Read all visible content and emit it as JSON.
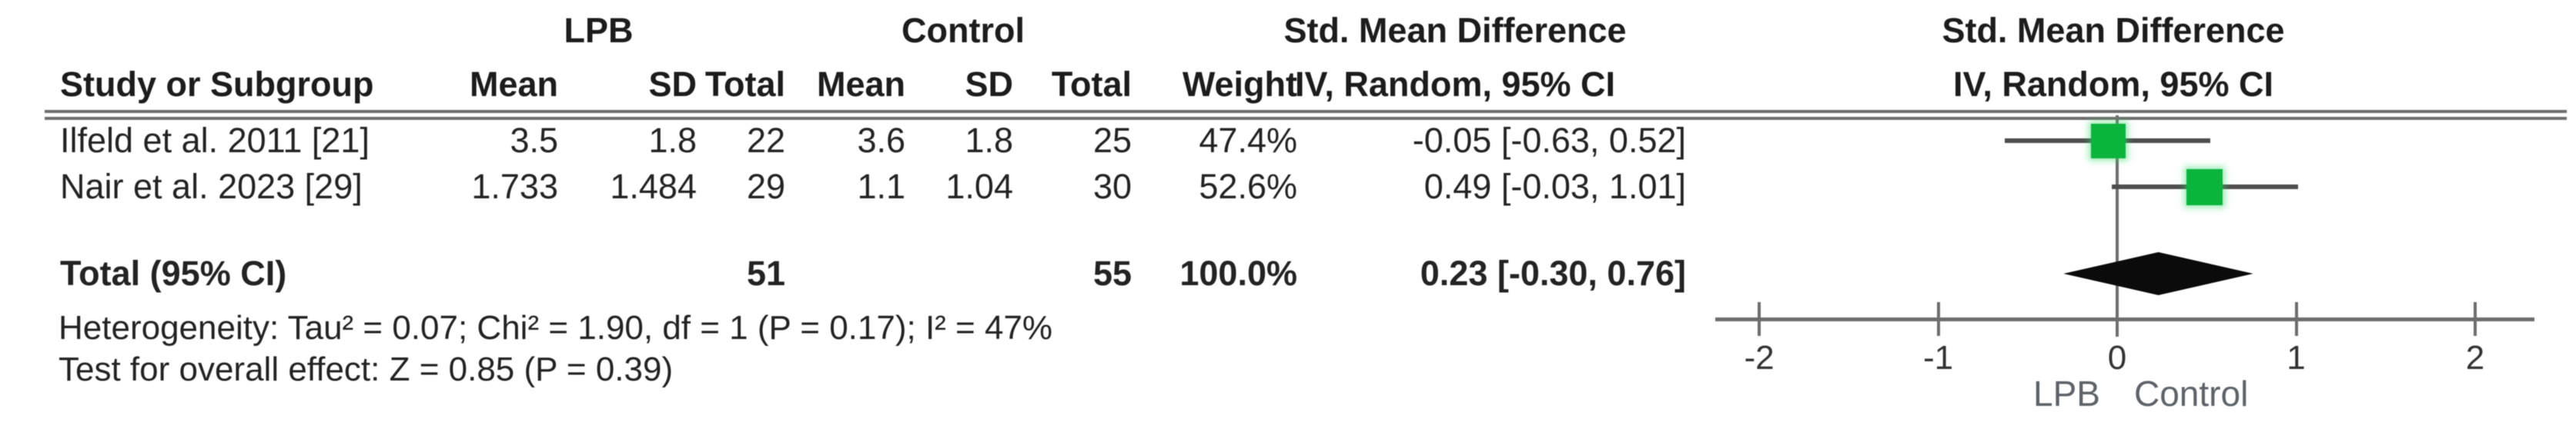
{
  "figure": {
    "group_headers": {
      "lpb": "LPB",
      "control": "Control",
      "smd_text_col": "Std. Mean Difference",
      "smd_plot_col": "Std. Mean Difference"
    },
    "col_headers": {
      "study": "Study or Subgroup",
      "lpb_mean": "Mean",
      "lpb_sd": "SD",
      "lpb_total": "Total",
      "ctrl_mean": "Mean",
      "ctrl_sd": "SD",
      "ctrl_total": "Total",
      "weight": "Weight",
      "ci_text_col": "IV, Random, 95% CI",
      "ci_plot_col": "IV, Random, 95% CI"
    },
    "studies": [
      {
        "name": "Ilfeld et al. 2011 [21]",
        "lpb_mean": "3.5",
        "lpb_sd": "1.8",
        "lpb_total": "22",
        "ctrl_mean": "3.6",
        "ctrl_sd": "1.8",
        "ctrl_total": "25",
        "weight": "47.4%",
        "smd_ci": "-0.05 [-0.63, 0.52]"
      },
      {
        "name": "Nair et al. 2023 [29]",
        "lpb_mean": "1.733",
        "lpb_sd": "1.484",
        "lpb_total": "29",
        "ctrl_mean": "1.1",
        "ctrl_sd": "1.04",
        "ctrl_total": "30",
        "weight": "52.6%",
        "smd_ci": "0.49 [-0.03, 1.01]"
      }
    ],
    "total": {
      "label": "Total (95% CI)",
      "lpb_total": "51",
      "ctrl_total": "55",
      "weight": "100.0%",
      "smd_ci": "0.23 [-0.30, 0.76]"
    },
    "footnotes": {
      "heterogeneity": "Heterogeneity: Tau² = 0.07; Chi² = 1.90, df = 1 (P = 0.17); I² = 47%",
      "overall_effect": "Test for overall effect: Z = 0.85 (P = 0.39)"
    }
  },
  "chart_data": {
    "type": "scatter",
    "subtype": "forest_plot",
    "title": "Std. Mean Difference",
    "effect_measure": "Std. Mean Difference",
    "method": "IV, Random, 95% CI",
    "studies": [
      {
        "label": "Ilfeld et al. 2011 [21]",
        "smd": -0.05,
        "ci_low": -0.63,
        "ci_high": 0.52,
        "weight_pct": 47.4
      },
      {
        "label": "Nair et al. 2023 [29]",
        "smd": 0.49,
        "ci_low": -0.03,
        "ci_high": 1.01,
        "weight_pct": 52.6
      }
    ],
    "total": {
      "label": "Total (95% CI)",
      "smd": 0.23,
      "ci_low": -0.3,
      "ci_high": 0.76
    },
    "axis": {
      "ticks": [
        -2,
        -1,
        0,
        1,
        2
      ],
      "min": -2.25,
      "max": 2.33,
      "label_left": "LPB",
      "label_right": "Control"
    },
    "grid": false,
    "legend_position": "none"
  },
  "colors": {
    "marker_green": "#0bb43d",
    "marker_glow": "rgba(45,215,100,0.5)",
    "diamond_black": "#0b0b0b",
    "ci_line_gray": "#4e4e4e",
    "rule_gray": "#6f6f6f",
    "axis_gray": "#6d6d6d",
    "text_dark": "#232323",
    "axis_label_gray": "#5d6369"
  }
}
